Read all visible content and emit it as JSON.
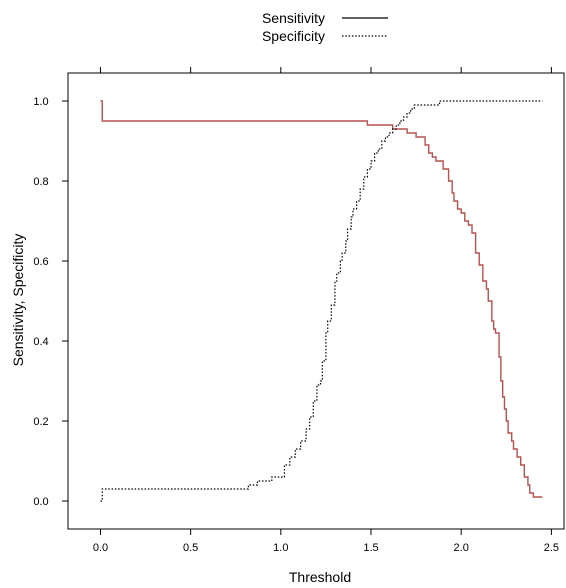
{
  "chart_data": {
    "type": "line",
    "xlabel": "Threshold",
    "ylabel": "Sensitivity, Specificity",
    "xlim": [
      -0.18,
      2.57
    ],
    "ylim": [
      -0.07,
      1.07
    ],
    "x_ticks": [
      0.0,
      0.5,
      1.0,
      1.5,
      2.0,
      2.5
    ],
    "x_tick_labels": [
      "0.0",
      "0.5",
      "1.0",
      "1.5",
      "2.0",
      "2.5"
    ],
    "y_ticks": [
      0.0,
      0.2,
      0.4,
      0.6,
      0.8,
      1.0
    ],
    "y_tick_labels": [
      "0.0",
      "0.2",
      "0.4",
      "0.6",
      "0.8",
      "1.0"
    ],
    "top_ticks": [
      0.0,
      0.5,
      1.0,
      1.5,
      2.0,
      2.5
    ],
    "grid": false,
    "legend_position": "top-center",
    "series": [
      {
        "name": "Sensitivity",
        "color": "#b5524f",
        "style": "solid",
        "x": [
          0.0,
          0.01,
          0.01,
          1.48,
          1.48,
          1.62,
          1.62,
          1.7,
          1.7,
          1.75,
          1.75,
          1.8,
          1.8,
          1.82,
          1.82,
          1.84,
          1.84,
          1.86,
          1.86,
          1.9,
          1.9,
          1.93,
          1.93,
          1.95,
          1.95,
          1.96,
          1.96,
          1.98,
          1.98,
          2.0,
          2.0,
          2.02,
          2.02,
          2.04,
          2.04,
          2.06,
          2.06,
          2.08,
          2.08,
          2.1,
          2.1,
          2.12,
          2.12,
          2.14,
          2.14,
          2.15,
          2.15,
          2.17,
          2.17,
          2.18,
          2.18,
          2.19,
          2.19,
          2.21,
          2.21,
          2.22,
          2.22,
          2.23,
          2.23,
          2.24,
          2.24,
          2.25,
          2.25,
          2.26,
          2.26,
          2.28,
          2.28,
          2.29,
          2.29,
          2.31,
          2.31,
          2.33,
          2.33,
          2.35,
          2.35,
          2.37,
          2.37,
          2.38,
          2.38,
          2.4,
          2.4,
          2.42,
          2.42,
          2.45
        ],
        "y": [
          1.0,
          1.0,
          0.95,
          0.95,
          0.94,
          0.94,
          0.93,
          0.93,
          0.92,
          0.92,
          0.91,
          0.91,
          0.89,
          0.89,
          0.87,
          0.87,
          0.86,
          0.86,
          0.85,
          0.85,
          0.83,
          0.83,
          0.8,
          0.8,
          0.77,
          0.77,
          0.75,
          0.75,
          0.73,
          0.73,
          0.72,
          0.72,
          0.7,
          0.7,
          0.69,
          0.69,
          0.67,
          0.67,
          0.62,
          0.62,
          0.59,
          0.59,
          0.55,
          0.55,
          0.53,
          0.53,
          0.5,
          0.5,
          0.45,
          0.45,
          0.43,
          0.43,
          0.42,
          0.42,
          0.36,
          0.36,
          0.3,
          0.3,
          0.26,
          0.26,
          0.23,
          0.23,
          0.2,
          0.2,
          0.17,
          0.17,
          0.15,
          0.15,
          0.13,
          0.13,
          0.11,
          0.11,
          0.09,
          0.09,
          0.06,
          0.06,
          0.04,
          0.04,
          0.02,
          0.02,
          0.01,
          0.01,
          0.01,
          0.01
        ]
      },
      {
        "name": "Specificity",
        "color": "#000000",
        "style": "dotted",
        "x": [
          0.0,
          0.01,
          0.01,
          0.82,
          0.82,
          0.87,
          0.87,
          0.9,
          0.9,
          0.95,
          0.95,
          1.02,
          1.02,
          1.05,
          1.05,
          1.08,
          1.08,
          1.11,
          1.11,
          1.14,
          1.14,
          1.16,
          1.16,
          1.18,
          1.18,
          1.2,
          1.2,
          1.22,
          1.22,
          1.23,
          1.23,
          1.25,
          1.25,
          1.26,
          1.26,
          1.28,
          1.28,
          1.3,
          1.3,
          1.31,
          1.31,
          1.33,
          1.33,
          1.34,
          1.34,
          1.36,
          1.36,
          1.37,
          1.37,
          1.39,
          1.39,
          1.4,
          1.4,
          1.42,
          1.42,
          1.44,
          1.44,
          1.46,
          1.46,
          1.48,
          1.48,
          1.5,
          1.5,
          1.52,
          1.52,
          1.54,
          1.54,
          1.56,
          1.56,
          1.58,
          1.58,
          1.6,
          1.6,
          1.62,
          1.62,
          1.64,
          1.64,
          1.66,
          1.66,
          1.68,
          1.68,
          1.7,
          1.7,
          1.72,
          1.72,
          1.74,
          1.74,
          1.78,
          1.78,
          1.82,
          1.82,
          1.88,
          1.88,
          1.98,
          1.98,
          2.02,
          2.02,
          2.1,
          2.1,
          2.45
        ],
        "y": [
          0.0,
          0.0,
          0.03,
          0.03,
          0.04,
          0.04,
          0.05,
          0.05,
          0.05,
          0.05,
          0.06,
          0.06,
          0.09,
          0.09,
          0.11,
          0.11,
          0.13,
          0.13,
          0.15,
          0.15,
          0.18,
          0.18,
          0.21,
          0.21,
          0.25,
          0.25,
          0.29,
          0.29,
          0.3,
          0.3,
          0.35,
          0.35,
          0.42,
          0.42,
          0.45,
          0.45,
          0.49,
          0.49,
          0.55,
          0.55,
          0.57,
          0.57,
          0.6,
          0.6,
          0.62,
          0.62,
          0.65,
          0.65,
          0.68,
          0.68,
          0.71,
          0.71,
          0.73,
          0.73,
          0.75,
          0.75,
          0.78,
          0.78,
          0.81,
          0.81,
          0.83,
          0.83,
          0.85,
          0.85,
          0.87,
          0.87,
          0.88,
          0.88,
          0.9,
          0.9,
          0.91,
          0.91,
          0.92,
          0.92,
          0.93,
          0.93,
          0.94,
          0.94,
          0.95,
          0.95,
          0.96,
          0.96,
          0.97,
          0.97,
          0.98,
          0.98,
          0.99,
          0.99,
          0.99,
          0.99,
          0.99,
          0.99,
          1.0,
          1.0,
          1.0,
          1.0,
          1.0,
          1.0,
          1.0,
          1.0
        ]
      }
    ]
  }
}
